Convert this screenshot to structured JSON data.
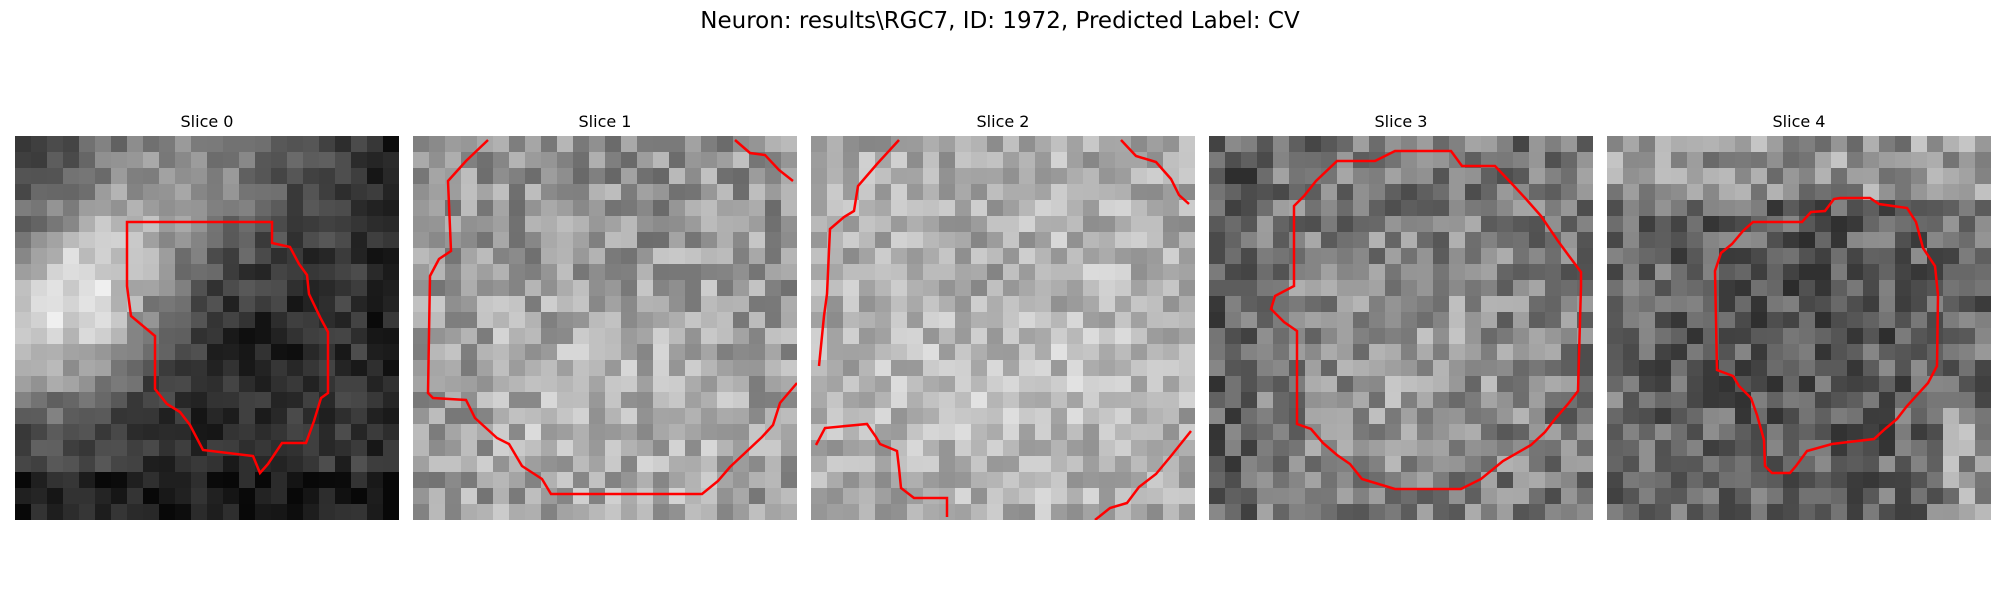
{
  "figure": {
    "title": "Neuron: results\\RGC7, ID: 1972, Predicted Label: CV"
  },
  "panels": [
    {
      "title": "Slice 0",
      "image": "grayscale-microscopy-slice",
      "contour_color": "#ff0000"
    },
    {
      "title": "Slice 1",
      "image": "grayscale-microscopy-slice",
      "contour_color": "#ff0000"
    },
    {
      "title": "Slice 2",
      "image": "grayscale-microscopy-slice",
      "contour_color": "#ff0000"
    },
    {
      "title": "Slice 3",
      "image": "grayscale-microscopy-slice",
      "contour_color": "#ff0000"
    },
    {
      "title": "Slice 4",
      "image": "grayscale-microscopy-slice",
      "contour_color": "#ff0000"
    }
  ]
}
